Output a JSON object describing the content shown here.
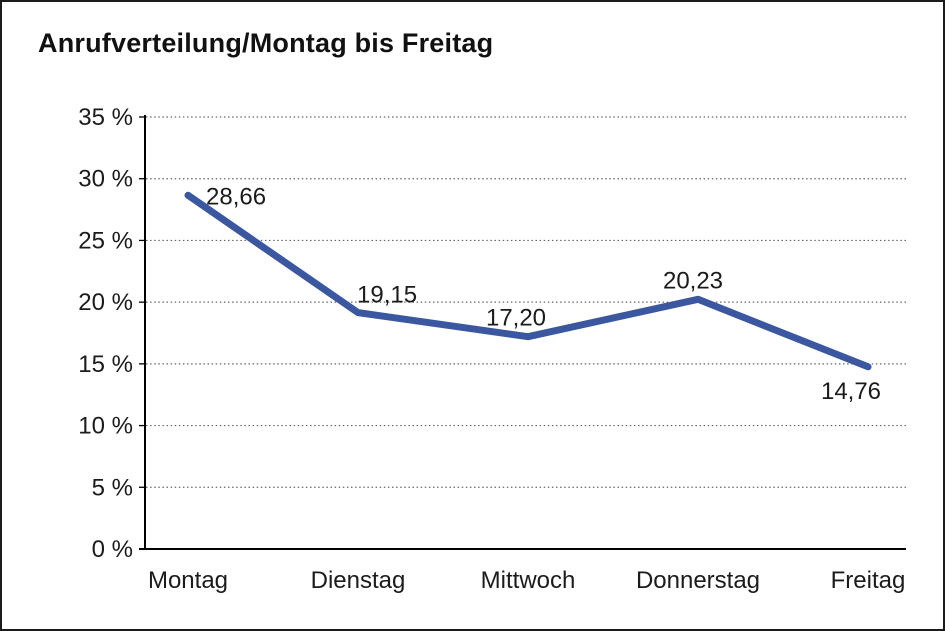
{
  "window": {
    "background_color": "#ffffff",
    "frame_color": "#1b1b1b"
  },
  "chart_data": {
    "type": "line",
    "title": "Anrufverteilung/Montag bis Freitag",
    "categories": [
      "Montag",
      "Dienstag",
      "Mittwoch",
      "Donnerstag",
      "Freitag"
    ],
    "series": [
      {
        "name": "Anrufverteilung",
        "values": [
          28.66,
          19.15,
          17.2,
          20.23,
          14.76
        ],
        "color": "#3A57A0"
      }
    ],
    "point_labels": [
      "28,66",
      "19,15",
      "17,20",
      "20,23",
      "14,76"
    ],
    "xlabel": "",
    "ylabel": "",
    "ylim": [
      0,
      35
    ],
    "ytick_step": 5,
    "ytick_labels": [
      "0 %",
      "5 %",
      "10 %",
      "15 %",
      "20 %",
      "25 %",
      "30 %",
      "35 %"
    ],
    "grid": "horizontal-dotted",
    "legend": "none",
    "line_width": 7,
    "axis_color": "#000000",
    "gridline_color": "#666666",
    "text_color": "#1b1b1b"
  }
}
